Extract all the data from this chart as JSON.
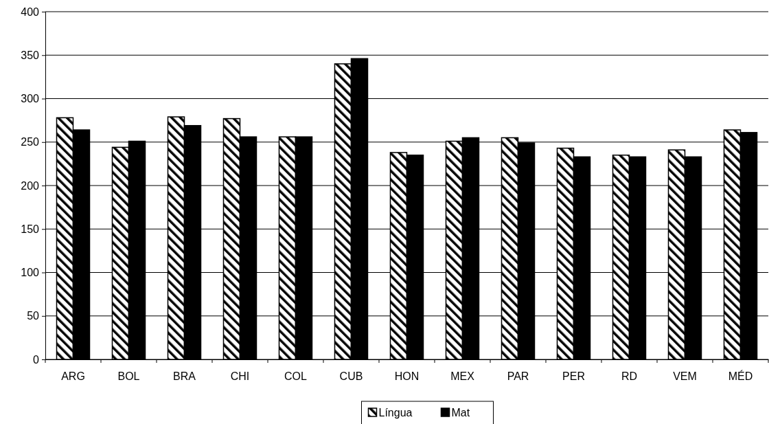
{
  "chart_data": {
    "type": "bar",
    "categories": [
      "ARG",
      "BOL",
      "BRA",
      "CHI",
      "COL",
      "CUB",
      "HON",
      "MEX",
      "PAR",
      "PER",
      "RD",
      "VEM",
      "MÉD"
    ],
    "series": [
      {
        "name": "Língua",
        "color": "#000000",
        "values": [
          278,
          244,
          279,
          277,
          256,
          340,
          238,
          251,
          255,
          243,
          235,
          241,
          264
        ]
      },
      {
        "name": "Mat",
        "color": "#000000",
        "values": [
          264,
          251,
          269,
          256,
          256,
          346,
          235,
          255,
          249,
          233,
          233,
          233,
          261
        ]
      }
    ],
    "ylim": [
      0,
      400
    ],
    "yticks": [
      0,
      50,
      100,
      150,
      200,
      250,
      300,
      350,
      400
    ],
    "grid": "y",
    "legend": "bottom"
  }
}
